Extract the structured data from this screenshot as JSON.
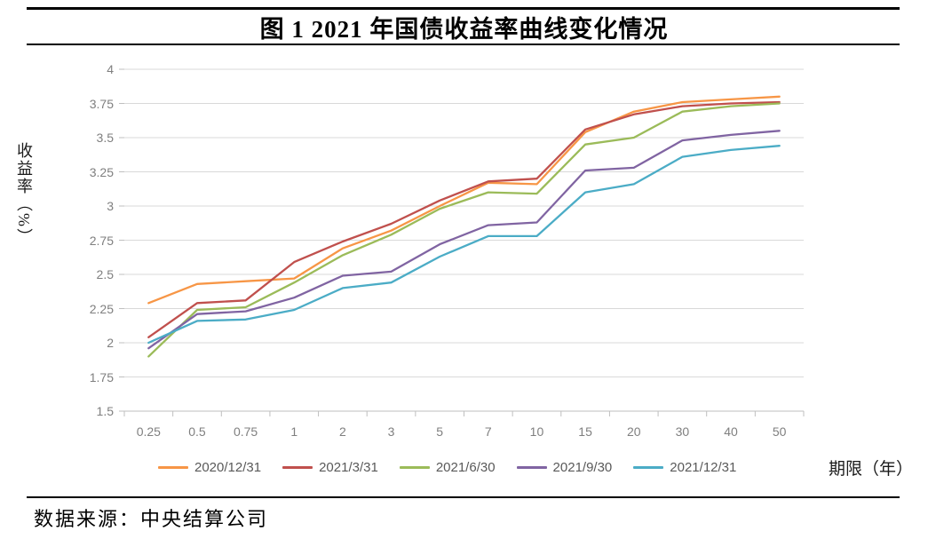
{
  "page": {
    "title": "图 1 2021 年国债收益率曲线变化情况",
    "source_label": "数据来源：中央结算公司"
  },
  "chart_data": {
    "type": "line",
    "title": "图 1 2021 年国债收益率曲线变化情况",
    "ylabel": "收益率（%）",
    "xlabel": "期限（年）",
    "x_categories": [
      "0.25",
      "0.5",
      "0.75",
      "1",
      "2",
      "3",
      "5",
      "7",
      "10",
      "15",
      "20",
      "30",
      "40",
      "50"
    ],
    "y_ticks": [
      "4",
      "3.75",
      "3.5",
      "3.25",
      "3",
      "2.75",
      "2.5",
      "2.25",
      "2",
      "1.75",
      "1.5"
    ],
    "ylim": [
      1.5,
      4
    ],
    "grid": "horizontal",
    "legend_position": "bottom",
    "series": [
      {
        "name": "2020/12/31",
        "color": "#F79646",
        "values": [
          2.29,
          2.43,
          2.45,
          2.47,
          2.69,
          2.82,
          3.0,
          3.17,
          3.16,
          3.54,
          3.69,
          3.76,
          3.78,
          3.8
        ]
      },
      {
        "name": "2021/3/31",
        "color": "#C0504D",
        "values": [
          2.04,
          2.29,
          2.31,
          2.59,
          2.74,
          2.87,
          3.04,
          3.18,
          3.2,
          3.56,
          3.67,
          3.73,
          3.75,
          3.76
        ]
      },
      {
        "name": "2021/6/30",
        "color": "#9BBB59",
        "values": [
          1.9,
          2.24,
          2.26,
          2.44,
          2.64,
          2.79,
          2.98,
          3.1,
          3.09,
          3.45,
          3.5,
          3.69,
          3.73,
          3.75
        ]
      },
      {
        "name": "2021/9/30",
        "color": "#8064A2",
        "values": [
          1.96,
          2.21,
          2.23,
          2.33,
          2.49,
          2.52,
          2.72,
          2.86,
          2.88,
          3.26,
          3.28,
          3.48,
          3.52,
          3.55
        ]
      },
      {
        "name": "2021/12/31",
        "color": "#4BACC6",
        "values": [
          2.0,
          2.16,
          2.17,
          2.24,
          2.4,
          2.44,
          2.63,
          2.78,
          2.78,
          3.1,
          3.16,
          3.36,
          3.41,
          3.44
        ]
      }
    ]
  }
}
